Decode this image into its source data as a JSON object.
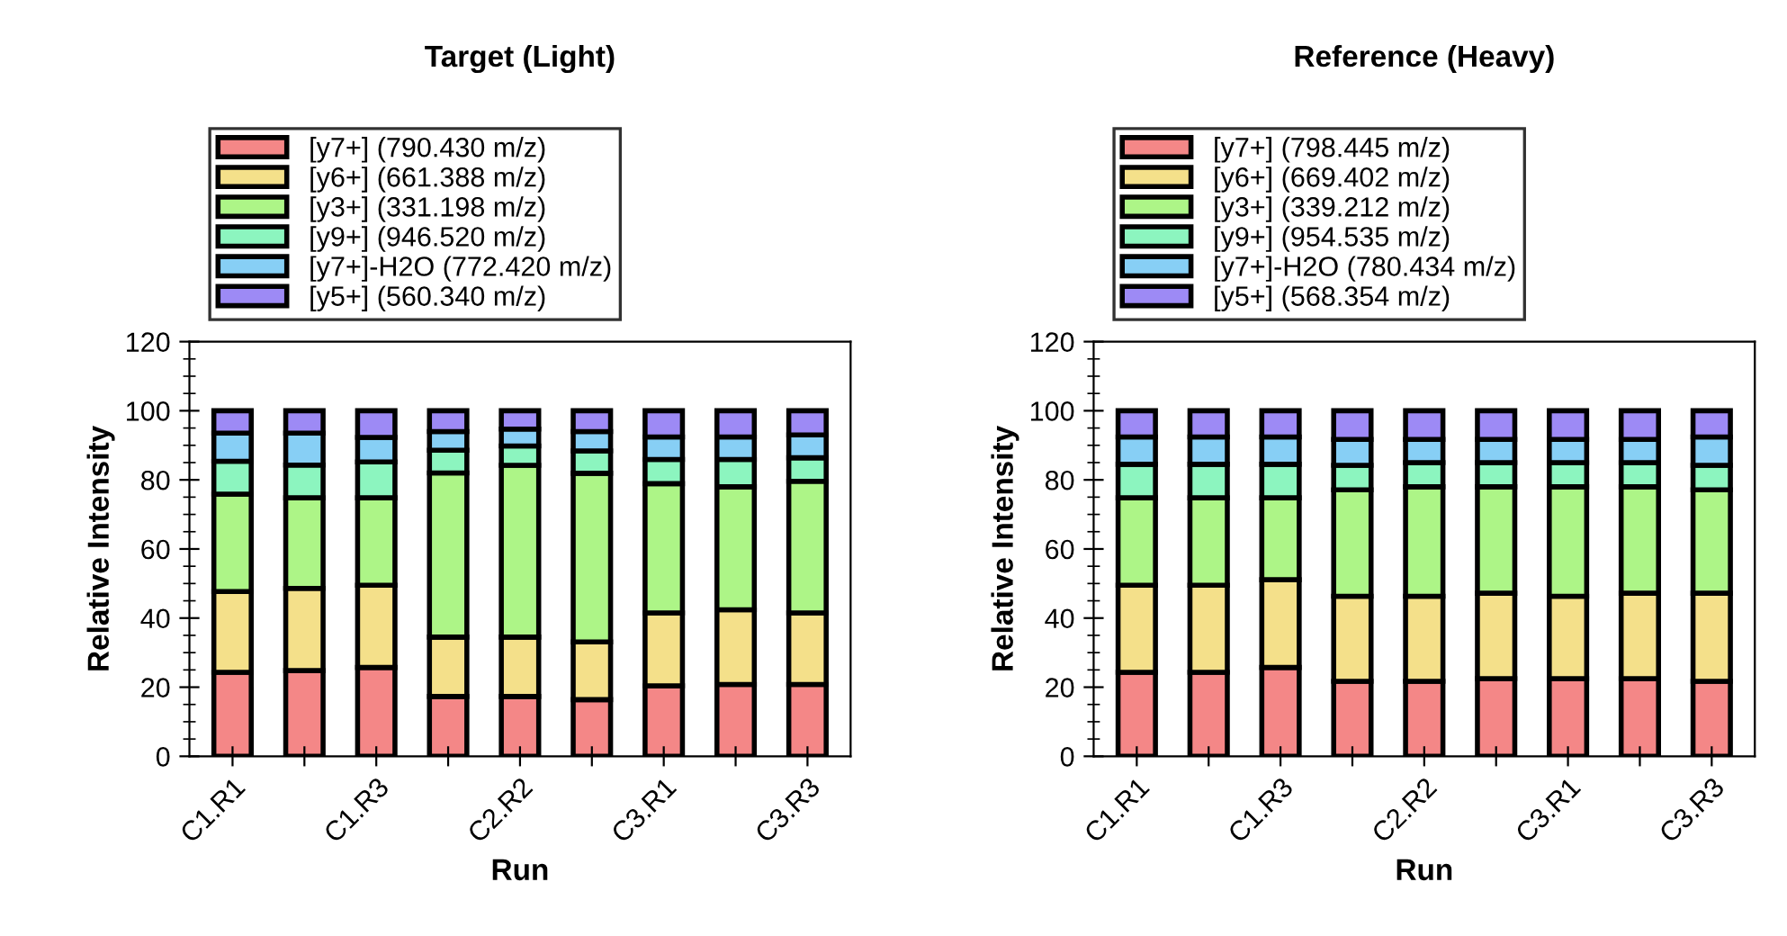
{
  "chart_data": [
    {
      "type": "bar",
      "title": "Target (Light)",
      "xlabel": "Run",
      "ylabel": "Relative Intensity",
      "stacked": true,
      "legend": "top",
      "grid": false,
      "categories": [
        "C1.R1",
        null,
        "C1.R3",
        null,
        "C2.R2",
        null,
        "C3.R1",
        null,
        "C3.R3"
      ],
      "ylim": [
        0,
        120
      ],
      "yticks": [
        0,
        20,
        40,
        60,
        80,
        100,
        120
      ],
      "series": [
        {
          "name": "[y7+] (790.430 m/z)",
          "color": "#f48787",
          "values": [
            24.3,
            24.8,
            25.7,
            17.3,
            17.3,
            16.4,
            20.4,
            20.8,
            20.8
          ]
        },
        {
          "name": "[y6+] (661.388 m/z)",
          "color": "#f4e08a",
          "values": [
            23.4,
            23.8,
            23.8,
            17.2,
            17.2,
            16.7,
            21.1,
            21.6,
            20.7
          ]
        },
        {
          "name": "[y3+] (331.198 m/z)",
          "color": "#adf587",
          "values": [
            28.2,
            26.2,
            25.3,
            47.5,
            49.7,
            48.8,
            37.4,
            35.6,
            38.1
          ]
        },
        {
          "name": "[y9+] (946.520 m/z)",
          "color": "#8cf5bf",
          "values": [
            9.5,
            9.5,
            10.4,
            6.6,
            5.6,
            6.5,
            7.0,
            7.9,
            6.8
          ]
        },
        {
          "name": "[y7+]-H2O (772.420 m/z)",
          "color": "#87cff5",
          "values": [
            8.1,
            9.2,
            7.1,
            5.4,
            4.9,
            5.6,
            6.5,
            6.5,
            6.6
          ]
        },
        {
          "name": "[y5+] (560.340 m/z)",
          "color": "#9d8af5",
          "values": [
            6.5,
            6.5,
            7.7,
            6.0,
            5.3,
            6.0,
            7.6,
            7.6,
            7.0
          ]
        }
      ]
    },
    {
      "type": "bar",
      "title": "Reference (Heavy)",
      "xlabel": "Run",
      "ylabel": "Relative Intensity",
      "stacked": true,
      "legend": "top",
      "grid": false,
      "categories": [
        "C1.R1",
        null,
        "C1.R3",
        null,
        "C2.R2",
        null,
        "C3.R1",
        null,
        "C3.R3"
      ],
      "ylim": [
        0,
        120
      ],
      "yticks": [
        0,
        20,
        40,
        60,
        80,
        100,
        120
      ],
      "series": [
        {
          "name": "[y7+] (798.445 m/z)",
          "color": "#f48787",
          "values": [
            24.3,
            24.3,
            25.7,
            21.7,
            21.7,
            22.5,
            22.5,
            22.5,
            21.7
          ]
        },
        {
          "name": "[y6+] (669.402 m/z)",
          "color": "#f4e08a",
          "values": [
            25.2,
            25.2,
            25.4,
            24.6,
            24.6,
            24.7,
            23.8,
            24.7,
            25.5
          ]
        },
        {
          "name": "[y3+] (339.212 m/z)",
          "color": "#adf587",
          "values": [
            25.3,
            25.3,
            23.7,
            30.8,
            31.7,
            30.8,
            31.7,
            30.8,
            29.9
          ]
        },
        {
          "name": "[y9+] (954.535 m/z)",
          "color": "#8cf5bf",
          "values": [
            9.7,
            9.7,
            9.7,
            7.1,
            7.0,
            7.0,
            7.0,
            7.0,
            7.1
          ]
        },
        {
          "name": "[y7+]-H2O (780.434 m/z)",
          "color": "#87cff5",
          "values": [
            7.9,
            7.9,
            7.9,
            7.5,
            6.7,
            6.7,
            6.7,
            6.7,
            8.2
          ]
        },
        {
          "name": "[y5+] (568.354 m/z)",
          "color": "#9d8af5",
          "values": [
            7.6,
            7.6,
            7.6,
            8.3,
            8.3,
            8.3,
            8.3,
            8.3,
            7.6
          ]
        }
      ]
    }
  ]
}
